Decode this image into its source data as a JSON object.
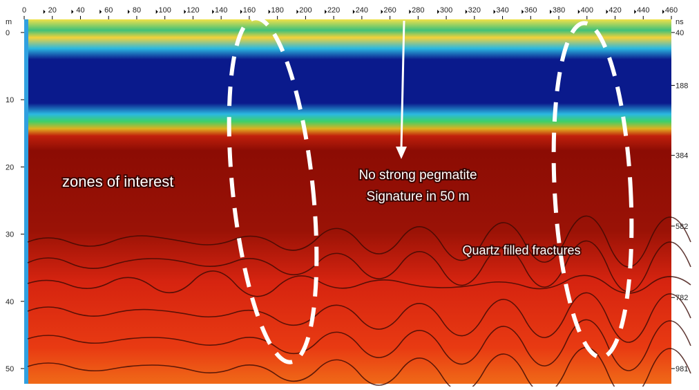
{
  "axes": {
    "top_ticks": [
      0,
      20,
      40,
      60,
      80,
      100,
      120,
      140,
      160,
      180,
      200,
      220,
      240,
      260,
      280,
      300,
      320,
      340,
      360,
      380,
      400,
      420,
      440,
      460
    ],
    "left_unit": "m",
    "right_unit": "ns",
    "left_ticks": [
      0,
      10,
      20,
      30,
      40,
      50
    ],
    "right_ticks": [
      40,
      188,
      384,
      582,
      782,
      981
    ]
  },
  "annotations": {
    "zones": "zones of interest",
    "pegmatite_line1": "No strong pegmatite",
    "pegmatite_line2": "Signature in 50 m",
    "quartz": "Quartz filled fractures"
  }
}
